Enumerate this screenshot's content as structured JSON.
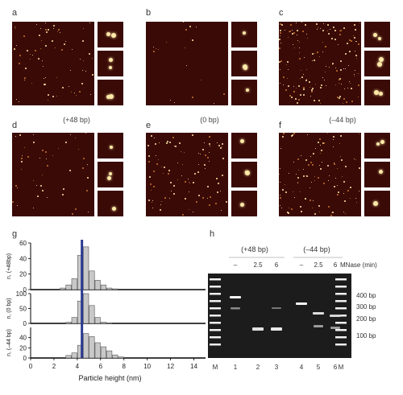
{
  "panel_labels": {
    "a": "a",
    "b": "b",
    "c": "c",
    "d": "d",
    "e": "e",
    "f": "f",
    "g": "g",
    "h": "h"
  },
  "captions": {
    "top_left": "(+48 bp)",
    "top_mid": "(0 bp)",
    "top_right": "(–44 bp)"
  },
  "afm_colors": {
    "background": "#3a0a06",
    "particle": "#ffe9a8",
    "particle_dim": "#c9782c"
  },
  "chart_data": [
    {
      "type": "bar",
      "panel": "g",
      "xlabel": "Particle height (nm)",
      "xlim": [
        0,
        15
      ],
      "xticks": [
        "0",
        "2",
        "4",
        "6",
        "8",
        "10",
        "12",
        "14"
      ],
      "reference_line_x": 4.4,
      "bar_color": "#c8c8c8",
      "line_color": "#2b3a8f",
      "histograms": [
        {
          "ylabel": "n, (+48bp)",
          "ylim": [
            0,
            60
          ],
          "yticks": [
            "0",
            "20",
            "40",
            "60"
          ],
          "x": [
            2.75,
            3.25,
            3.75,
            4.25,
            4.75,
            5.25,
            5.75,
            6.25,
            6.75,
            7.25
          ],
          "values": [
            2,
            6,
            14,
            44,
            55,
            24,
            12,
            6,
            2,
            1
          ]
        },
        {
          "ylabel": "n, (0 bp)",
          "ylim": [
            0,
            100
          ],
          "yticks": [
            "0",
            "50",
            "100"
          ],
          "x": [
            3.25,
            3.75,
            4.25,
            4.75,
            5.25,
            5.75,
            6.25,
            6.75
          ],
          "values": [
            4,
            20,
            75,
            102,
            60,
            20,
            4,
            2
          ]
        },
        {
          "ylabel": "n, (–44 bp)",
          "ylim": [
            0,
            60
          ],
          "yticks": [
            "0",
            "20",
            "40"
          ],
          "x": [
            3.25,
            3.75,
            4.25,
            4.75,
            5.25,
            5.75,
            6.25,
            6.75,
            7.25,
            7.75
          ],
          "values": [
            5,
            10,
            25,
            48,
            42,
            30,
            22,
            14,
            6,
            2
          ]
        }
      ]
    },
    {
      "type": "gel",
      "panel": "h",
      "group_labels": [
        "(+48 bp)",
        "(–44 bp)"
      ],
      "treatment_label": "MNase (min)",
      "treatment_values": [
        "–",
        "2.5",
        "6",
        "–",
        "2.5",
        "6"
      ],
      "lane_labels": [
        "M",
        "1",
        "2",
        "3",
        "4",
        "5",
        "6",
        "M"
      ],
      "size_markers": [
        "400 bp",
        "300 bp",
        "200 bp",
        "100 bp"
      ]
    }
  ]
}
